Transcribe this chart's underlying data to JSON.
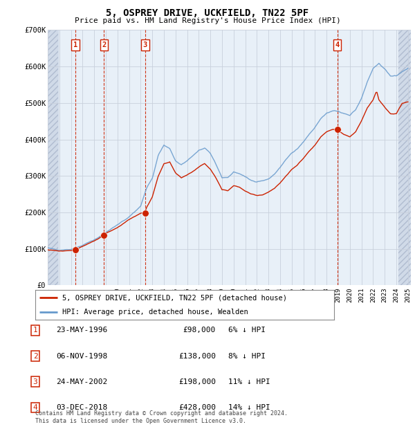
{
  "title": "5, OSPREY DRIVE, UCKFIELD, TN22 5PF",
  "subtitle": "Price paid vs. HM Land Registry's House Price Index (HPI)",
  "ylim": [
    0,
    700000
  ],
  "yticks": [
    0,
    100000,
    200000,
    300000,
    400000,
    500000,
    600000,
    700000
  ],
  "ytick_labels": [
    "£0",
    "£100K",
    "£200K",
    "£300K",
    "£400K",
    "£500K",
    "£600K",
    "£700K"
  ],
  "xlim_start": 1994.0,
  "xlim_end": 2025.25,
  "background_color": "#ffffff",
  "plot_bg_color": "#e8f0f8",
  "grid_color": "#c8d0dc",
  "sale_dates": [
    1996.38,
    1998.84,
    2002.38,
    2018.92
  ],
  "sale_prices": [
    98000,
    138000,
    198000,
    428000
  ],
  "sale_labels": [
    "1",
    "2",
    "3",
    "4"
  ],
  "hpi_line_color": "#6699cc",
  "price_line_color": "#cc2200",
  "dot_color": "#cc2200",
  "vline_color": "#cc2200",
  "legend_label_price": "5, OSPREY DRIVE, UCKFIELD, TN22 5PF (detached house)",
  "legend_label_hpi": "HPI: Average price, detached house, Wealden",
  "table_rows": [
    [
      "1",
      "23-MAY-1996",
      "£98,000",
      "6% ↓ HPI"
    ],
    [
      "2",
      "06-NOV-1998",
      "£138,000",
      "8% ↓ HPI"
    ],
    [
      "3",
      "24-MAY-2002",
      "£198,000",
      "11% ↓ HPI"
    ],
    [
      "4",
      "03-DEC-2018",
      "£428,000",
      "14% ↓ HPI"
    ]
  ],
  "footer": "Contains HM Land Registry data © Crown copyright and database right 2024.\nThis data is licensed under the Open Government Licence v3.0."
}
